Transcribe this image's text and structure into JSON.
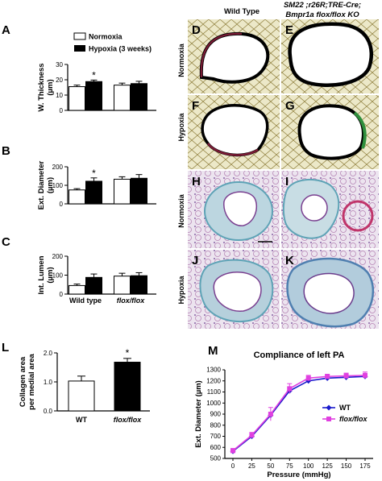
{
  "legend": {
    "normoxia": "Normoxia",
    "hypoxia": "Hypoxia (3 weeks)"
  },
  "groups": {
    "wild_type": "Wild type",
    "flox": "flox/flox"
  },
  "micrographs": {
    "col_left": "Wild Type",
    "col_right_line1": "SM22 ;r26R;TRE-Cre;",
    "col_right_line2": "Bmpr1a flox/flox KO",
    "row_normoxia": "Normoxia",
    "row_hypoxia": "Hypoxia",
    "labels": [
      "D",
      "E",
      "F",
      "G",
      "H",
      "I",
      "J",
      "K"
    ]
  },
  "colors": {
    "hypoxia_bar": "#000000",
    "normoxia_bar": "#ffffff",
    "wt_line": "#1a1acc",
    "flox_line": "#e040e0"
  },
  "chart_data": [
    {
      "panel": "A",
      "type": "bar",
      "ylabel_line1": "W. Thickness",
      "ylabel_line2": "(µm)",
      "ylim": [
        0,
        30
      ],
      "yticks": [
        0,
        10,
        20,
        30
      ],
      "groups": [
        "Wild type",
        "flox/flox"
      ],
      "series": [
        {
          "name": "Normoxia",
          "values": [
            15.5,
            16.5
          ],
          "errors": [
            1.0,
            1.3
          ]
        },
        {
          "name": "Hypoxia (3 weeks)",
          "values": [
            18.8,
            17.5
          ],
          "errors": [
            1.0,
            1.5
          ]
        }
      ],
      "annotations": [
        "*"
      ]
    },
    {
      "panel": "B",
      "type": "bar",
      "ylabel_line1": "Ext. Diameter",
      "ylabel_line2": "(µm)",
      "ylim": [
        0,
        200
      ],
      "yticks": [
        0,
        100,
        200
      ],
      "groups": [
        "Wild type",
        "flox/flox"
      ],
      "series": [
        {
          "name": "Normoxia",
          "values": [
            75,
            133
          ],
          "errors": [
            7,
            13
          ]
        },
        {
          "name": "Hypoxia (3 weeks)",
          "values": [
            122,
            138
          ],
          "errors": [
            18,
            20
          ]
        }
      ],
      "annotations": [
        "*"
      ]
    },
    {
      "panel": "C",
      "type": "bar",
      "ylabel_line1": "Int. Lumen",
      "ylabel_line2": "(µm)",
      "ylim": [
        0,
        200
      ],
      "yticks": [
        0,
        100,
        200
      ],
      "groups": [
        "Wild type",
        "flox/flox"
      ],
      "series": [
        {
          "name": "Normoxia",
          "values": [
            45,
            95
          ],
          "errors": [
            8,
            15
          ]
        },
        {
          "name": "Hypoxia (3 weeks)",
          "values": [
            88,
            97
          ],
          "errors": [
            18,
            16
          ]
        }
      ]
    },
    {
      "panel": "L",
      "type": "bar",
      "ylabel_line1": "Collagen area",
      "ylabel_line2": "per medial area",
      "ylim": [
        0,
        2.0
      ],
      "yticks": [
        "0.0",
        "1.0",
        "2.0"
      ],
      "categories": [
        "WT",
        "flox/flox"
      ],
      "values": [
        1.03,
        1.68
      ],
      "errors": [
        0.17,
        0.13
      ],
      "annotations": [
        "*"
      ]
    },
    {
      "panel": "M",
      "type": "line",
      "title": "Compliance of left PA",
      "xlabel": "Pressure (mmHg)",
      "ylabel": "Ext. Diameter (µm)",
      "xlim": [
        0,
        175
      ],
      "ylim": [
        500,
        1300
      ],
      "xticks": [
        0,
        25,
        50,
        75,
        100,
        125,
        150,
        175
      ],
      "yticks": [
        500,
        600,
        700,
        800,
        900,
        1000,
        1100,
        1200,
        1300
      ],
      "x": [
        0,
        25,
        50,
        75,
        100,
        125,
        150,
        175
      ],
      "series": [
        {
          "name": "WT",
          "values": [
            565,
            700,
            890,
            1110,
            1200,
            1225,
            1232,
            1240
          ]
        },
        {
          "name": "flox/flox",
          "values": [
            570,
            710,
            900,
            1130,
            1225,
            1240,
            1245,
            1250
          ],
          "errors": [
            20,
            25,
            60,
            45,
            25,
            20,
            25,
            30
          ]
        }
      ],
      "legend": "right"
    }
  ]
}
